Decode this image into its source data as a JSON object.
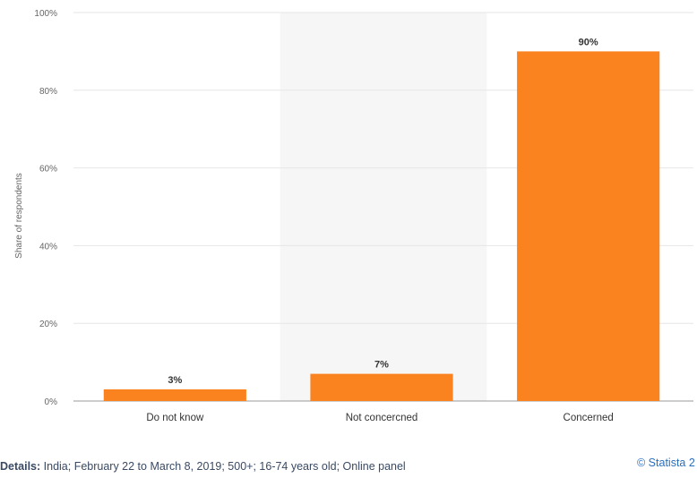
{
  "chart_data": {
    "type": "bar",
    "categories": [
      "Do not know",
      "Not concerned",
      "Concerned"
    ],
    "category_labels_shown": [
      "Do not know",
      "Not concercned",
      "Concerned"
    ],
    "values": [
      3,
      7,
      90
    ],
    "value_labels": [
      "3%",
      "7%",
      "90%"
    ],
    "ylabel": "Share of respondents",
    "ylim": [
      0,
      100
    ],
    "yticks": [
      0,
      20,
      40,
      60,
      80,
      100
    ],
    "ytick_labels": [
      "0%",
      "20%",
      "40%",
      "60%",
      "80%",
      "100%"
    ],
    "grid": true,
    "bar_color": "#fa8320",
    "highlight_band_color": "#f6f6f6"
  },
  "footer": {
    "details_label": "Details:",
    "details_text": "India; February 22 to March 8, 2019; 500+; 16-74 years old; Online panel",
    "source": "© Statista 2"
  }
}
